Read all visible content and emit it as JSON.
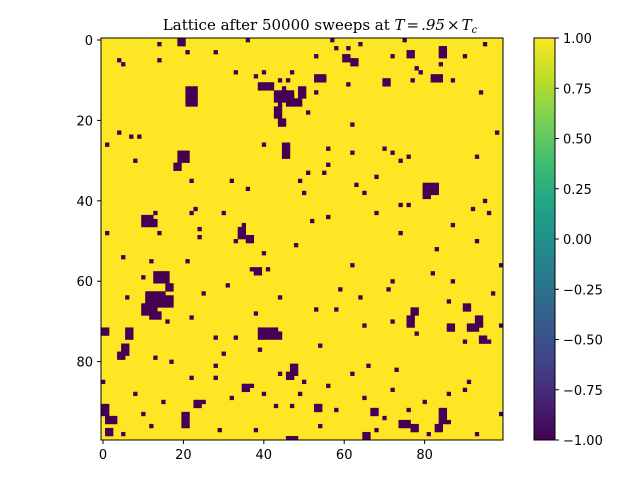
{
  "chart_data": [
    {
      "type": "heatmap",
      "title": "Lattice after 50000 sweeps at T=.95×T_c",
      "title_parts": {
        "prefix": "Lattice after 50000 sweeps at ",
        "math_T": "T",
        "math_eq": "=",
        "math_value": ".95",
        "math_times": "×",
        "math_Tc": "T",
        "math_sub": "c"
      },
      "grid_size": [
        100,
        100
      ],
      "value_set": [
        -1,
        1
      ],
      "background_value": 1,
      "colormap": "viridis",
      "value_colors": {
        "-1": "#440154",
        "1": "#fde725"
      },
      "xlim": [
        -0.5,
        99.5
      ],
      "ylim": [
        99.5,
        -0.5
      ],
      "y_inverted": true,
      "xticks": [
        0,
        20,
        40,
        60,
        80
      ],
      "xtick_labels": [
        "0",
        "20",
        "40",
        "60",
        "80"
      ],
      "yticks": [
        0,
        20,
        40,
        60,
        80
      ],
      "ytick_labels": [
        "0",
        "20",
        "40",
        "60",
        "80"
      ],
      "minus_one_cells": [
        [
          0,
          20
        ],
        [
          1,
          20
        ],
        [
          0,
          36
        ],
        [
          0,
          57
        ],
        [
          0,
          75
        ],
        [
          1,
          14
        ],
        [
          1,
          64
        ],
        [
          1,
          95
        ],
        [
          2,
          58
        ],
        [
          2,
          61
        ],
        [
          2,
          85
        ],
        [
          3,
          28
        ],
        [
          3,
          21
        ],
        [
          4,
          53
        ],
        [
          4,
          60
        ],
        [
          4,
          72
        ],
        [
          4,
          90
        ],
        [
          5,
          4
        ],
        [
          5,
          14
        ],
        [
          6,
          5
        ],
        [
          6,
          84
        ],
        [
          7,
          78
        ],
        [
          8,
          47
        ],
        [
          8,
          40
        ],
        [
          8,
          79
        ],
        [
          8,
          33
        ],
        [
          9,
          38
        ],
        [
          9,
          82
        ],
        [
          10,
          44
        ],
        [
          10,
          46
        ],
        [
          10,
          77
        ],
        [
          10,
          82
        ],
        [
          10,
          87
        ],
        [
          11,
          61
        ],
        [
          12,
          45
        ],
        [
          13,
          53
        ],
        [
          13,
          94
        ],
        [
          16,
          44
        ],
        [
          18,
          51
        ],
        [
          21,
          62
        ],
        [
          23,
          4
        ],
        [
          23,
          98
        ],
        [
          24,
          7
        ],
        [
          24,
          9
        ],
        [
          26,
          1
        ],
        [
          26,
          40
        ],
        [
          27,
          56
        ],
        [
          27,
          70
        ],
        [
          28,
          62
        ],
        [
          28,
          72
        ],
        [
          29,
          76
        ],
        [
          29,
          93
        ],
        [
          30,
          8
        ],
        [
          30,
          74
        ],
        [
          31,
          56
        ],
        [
          33,
          51
        ],
        [
          33,
          55
        ],
        [
          34,
          68
        ],
        [
          35,
          22
        ],
        [
          35,
          32
        ],
        [
          35,
          49
        ],
        [
          36,
          63
        ],
        [
          37,
          36
        ],
        [
          38,
          65
        ],
        [
          38,
          50
        ],
        [
          40,
          95
        ],
        [
          41,
          74
        ],
        [
          41,
          76
        ],
        [
          42,
          23
        ],
        [
          42,
          92
        ],
        [
          43,
          13
        ],
        [
          43,
          22
        ],
        [
          43,
          30
        ],
        [
          43,
          68
        ],
        [
          43,
          96
        ],
        [
          44,
          56
        ],
        [
          45,
          52
        ],
        [
          46,
          35
        ],
        [
          46,
          87
        ],
        [
          47,
          24
        ],
        [
          48,
          1
        ],
        [
          48,
          14
        ],
        [
          48,
          74
        ],
        [
          49,
          24
        ],
        [
          50,
          33
        ],
        [
          50,
          93
        ],
        [
          51,
          48
        ],
        [
          52,
          83
        ],
        [
          53,
          40
        ],
        [
          54,
          5
        ],
        [
          55,
          12
        ],
        [
          55,
          21
        ],
        [
          56,
          62
        ],
        [
          56,
          99
        ],
        [
          57,
          37
        ],
        [
          57,
          41
        ],
        [
          58,
          82
        ],
        [
          59,
          10
        ],
        [
          60,
          72
        ],
        [
          60,
          87
        ],
        [
          61,
          31
        ],
        [
          62,
          59
        ],
        [
          62,
          71
        ],
        [
          63,
          25
        ],
        [
          63,
          97
        ],
        [
          64,
          6
        ],
        [
          64,
          44
        ],
        [
          64,
          64
        ],
        [
          65,
          86
        ],
        [
          67,
          53
        ],
        [
          67,
          58
        ],
        [
          68,
          38
        ],
        [
          69,
          22
        ],
        [
          70,
          16
        ],
        [
          70,
          72
        ],
        [
          71,
          65
        ],
        [
          71,
          99
        ],
        [
          73,
          78
        ],
        [
          74,
          28
        ],
        [
          74,
          33
        ],
        [
          75,
          90
        ],
        [
          75,
          96
        ],
        [
          76,
          6
        ],
        [
          76,
          54
        ],
        [
          77,
          39
        ],
        [
          78,
          30
        ],
        [
          79,
          13
        ],
        [
          80,
          17
        ],
        [
          81,
          28
        ],
        [
          81,
          48
        ],
        [
          81,
          66
        ],
        [
          82,
          73
        ],
        [
          83,
          44
        ],
        [
          83,
          62
        ],
        [
          84,
          22
        ],
        [
          84,
          28
        ],
        [
          85,
          0
        ],
        [
          85,
          50
        ],
        [
          85,
          91
        ],
        [
          86,
          37
        ],
        [
          86,
          56
        ],
        [
          87,
          72
        ],
        [
          87,
          90
        ],
        [
          88,
          8
        ],
        [
          88,
          40
        ],
        [
          88,
          49
        ],
        [
          88,
          86
        ],
        [
          89,
          32
        ],
        [
          89,
          65
        ],
        [
          90,
          15
        ],
        [
          90,
          25
        ],
        [
          90,
          80
        ],
        [
          91,
          43
        ],
        [
          91,
          47
        ],
        [
          92,
          58
        ],
        [
          92,
          76
        ],
        [
          93,
          10
        ],
        [
          93,
          99
        ],
        [
          94,
          70
        ],
        [
          95,
          86
        ],
        [
          96,
          12
        ],
        [
          96,
          54
        ],
        [
          97,
          29
        ],
        [
          97,
          38
        ],
        [
          97,
          68
        ],
        [
          98,
          5
        ],
        [
          98,
          81
        ],
        [
          98,
          93
        ],
        [
          99,
          47
        ]
      ],
      "minus_one_blocks": [
        [
          13,
          43,
          3,
          5
        ],
        [
          15,
          46,
          2,
          4
        ],
        [
          11,
          39,
          2,
          4
        ],
        [
          12,
          21,
          5,
          3
        ],
        [
          12,
          49,
          3,
          2
        ],
        [
          17,
          43,
          3,
          2
        ],
        [
          20,
          44,
          2,
          2
        ],
        [
          9,
          53,
          2,
          3
        ],
        [
          5,
          62,
          2,
          2
        ],
        [
          4,
          60,
          2,
          2
        ],
        [
          0,
          19,
          2,
          2
        ],
        [
          2,
          84,
          3,
          2
        ],
        [
          3,
          76,
          2,
          2
        ],
        [
          10,
          70,
          2,
          2
        ],
        [
          9,
          83,
          2,
          2
        ],
        [
          28,
          19,
          3,
          3
        ],
        [
          31,
          18,
          2,
          2
        ],
        [
          26,
          45,
          2,
          2
        ],
        [
          28,
          45,
          2,
          2
        ],
        [
          36,
          80,
          3,
          4
        ],
        [
          38,
          80,
          2,
          2
        ],
        [
          44,
          10,
          3,
          3
        ],
        [
          45,
          11,
          2,
          3
        ],
        [
          47,
          34,
          3,
          2
        ],
        [
          49,
          36,
          2,
          2
        ],
        [
          58,
          13,
          3,
          4
        ],
        [
          61,
          16,
          2,
          2
        ],
        [
          63,
          11,
          4,
          5
        ],
        [
          66,
          10,
          3,
          4
        ],
        [
          68,
          12,
          2,
          3
        ],
        [
          64,
          16,
          3,
          2
        ],
        [
          72,
          0,
          2,
          2
        ],
        [
          72,
          39,
          3,
          5
        ],
        [
          73,
          42,
          2,
          3
        ],
        [
          69,
          76,
          3,
          2
        ],
        [
          67,
          77,
          2,
          2
        ],
        [
          71,
          86,
          2,
          2
        ],
        [
          71,
          91,
          2,
          3
        ],
        [
          69,
          93,
          3,
          2
        ],
        [
          66,
          90,
          2,
          2
        ],
        [
          74,
          94,
          2,
          2
        ],
        [
          72,
          6,
          3,
          2
        ],
        [
          76,
          5,
          3,
          2
        ],
        [
          78,
          4,
          2,
          2
        ],
        [
          91,
          0,
          3,
          2
        ],
        [
          94,
          1,
          2,
          3
        ],
        [
          97,
          1,
          2,
          2
        ],
        [
          93,
          20,
          3,
          2
        ],
        [
          95,
          20,
          2,
          2
        ],
        [
          92,
          67,
          2,
          2
        ],
        [
          95,
          74,
          2,
          3
        ],
        [
          96,
          77,
          2,
          2
        ],
        [
          92,
          84,
          2,
          2
        ],
        [
          94,
          84,
          2,
          2
        ],
        [
          96,
          83,
          2,
          2
        ],
        [
          99,
          46,
          1,
          3
        ],
        [
          98,
          65,
          2,
          2
        ],
        [
          86,
          35,
          2,
          2
        ],
        [
          90,
          23,
          2,
          2
        ],
        [
          91,
          53,
          2,
          2
        ],
        [
          81,
          47,
          3,
          2
        ],
        [
          83,
          46,
          2,
          2
        ],
        [
          57,
          38,
          2,
          2
        ]
      ]
    },
    {
      "type": "colorbar",
      "range": [
        -1.0,
        1.0
      ],
      "colormap": "viridis",
      "ticks": [
        1.0,
        0.75,
        0.5,
        0.25,
        0.0,
        -0.25,
        -0.5,
        -0.75,
        -1.0
      ],
      "tick_labels": [
        "1.00",
        "0.75",
        "0.50",
        "0.25",
        "0.00",
        "−0.25",
        "−0.50",
        "−0.75",
        "−1.00"
      ]
    }
  ]
}
